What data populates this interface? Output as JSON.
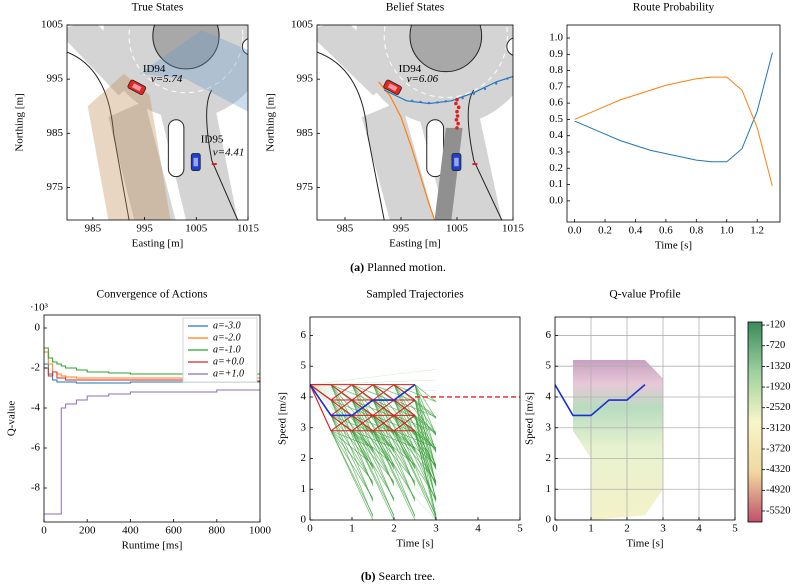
{
  "chart_data": [
    {
      "type": "scene",
      "title": "True States",
      "xlabel": "Easting [m]",
      "ylabel": "Northing [m]",
      "xlim": [
        980,
        1015
      ],
      "ylim": [
        969,
        1005
      ],
      "xticks": [
        985,
        995,
        1005,
        1015
      ],
      "yticks": [
        975,
        985,
        995,
        1005
      ],
      "vehicles": [
        {
          "id": "ID94",
          "speed_label": "v=5.74",
          "x": 993.5,
          "y": 993.5,
          "color": "#e8251f"
        },
        {
          "id": "ID95",
          "speed_label": "v=4.41",
          "x": 1004.9,
          "y": 979.7,
          "color": "#1f3fcf"
        }
      ]
    },
    {
      "type": "scene",
      "title": "Belief States",
      "xlabel": "Easting [m]",
      "ylabel": "Northing [m]",
      "xlim": [
        980,
        1015
      ],
      "ylim": [
        969,
        1005
      ],
      "xticks": [
        985,
        995,
        1005,
        1015
      ],
      "yticks": [
        975,
        985,
        995,
        1005
      ],
      "vehicles": [
        {
          "id": "ID94",
          "speed_label": "v=6.06",
          "x": 993.5,
          "y": 993.5,
          "color": "#e8251f"
        },
        {
          "x": 1004.9,
          "y": 979.7,
          "color": "#1f3fcf"
        }
      ],
      "routes": [
        {
          "color": "#ff7f0e",
          "x": [
            991,
            993,
            995,
            997,
            998.5,
            1000,
            1001
          ],
          "y": [
            994.5,
            992,
            988,
            982,
            977,
            972,
            969
          ]
        },
        {
          "color": "#1f77b4",
          "x": [
            992,
            996,
            1000,
            1004,
            1008,
            1012,
            1015
          ],
          "y": [
            993,
            991,
            990.5,
            991,
            992.5,
            994.5,
            995.5
          ]
        }
      ],
      "particles": [
        {
          "color": "#e02020",
          "x": [
            1005,
            1005.2,
            1004.9,
            1005.1,
            1005,
            1005.3,
            1004.8,
            1005
          ],
          "y": [
            986,
            986.8,
            987.5,
            988.2,
            989,
            989.8,
            990.5,
            991.2
          ]
        },
        {
          "color": "#4a6fd0",
          "x": [
            997,
            998.5,
            1000,
            1001.5,
            1003,
            1006,
            1008,
            1010,
            1012,
            1014
          ],
          "y": [
            991,
            990.8,
            990.6,
            990.7,
            990.9,
            991.5,
            992.3,
            993.2,
            994.2,
            995.1
          ]
        }
      ]
    },
    {
      "type": "line",
      "title": "Route Probability",
      "xlabel": "Time [s]",
      "xlim": [
        -0.05,
        1.35
      ],
      "ylim": [
        -0.13,
        1.08
      ],
      "xticks": [
        {
          "value": 0,
          "label": "0.0"
        },
        0.2,
        0.4,
        0.6,
        0.8,
        {
          "value": 1,
          "label": "1.0"
        },
        1.2
      ],
      "yticks": [
        {
          "value": 0,
          "label": "0.0"
        },
        0.1,
        0.2,
        0.3,
        0.4,
        0.5,
        0.6,
        0.7,
        0.8,
        0.9,
        {
          "value": 1,
          "label": "1.0"
        }
      ],
      "x": [
        0,
        0.1,
        0.2,
        0.3,
        0.4,
        0.5,
        0.6,
        0.7,
        0.8,
        0.9,
        1.0,
        1.1,
        1.2,
        1.3
      ],
      "series": [
        {
          "color": "#1f77b4",
          "values": [
            0.49,
            0.45,
            0.41,
            0.37,
            0.34,
            0.31,
            0.29,
            0.27,
            0.25,
            0.24,
            0.24,
            0.32,
            0.55,
            0.91
          ]
        },
        {
          "color": "#ff7f0e",
          "values": [
            0.5,
            0.54,
            0.58,
            0.62,
            0.65,
            0.68,
            0.71,
            0.73,
            0.75,
            0.76,
            0.76,
            0.68,
            0.45,
            0.09
          ]
        }
      ]
    },
    {
      "type": "line",
      "title": "Convergence of Actions",
      "xlabel": "Runtime [ms]",
      "ylabel": "Q-value",
      "y_multiplier": "·10³",
      "xlim": [
        0,
        1000
      ],
      "ylim": [
        -9.7,
        0.65
      ],
      "xticks": [
        0,
        200,
        400,
        600,
        800,
        1000
      ],
      "yticks": [
        0,
        -2,
        -4,
        -6,
        -8
      ],
      "step": true,
      "legend": "upper right",
      "x": [
        0,
        20,
        40,
        60,
        80,
        100,
        150,
        200,
        300,
        400,
        500,
        600,
        700,
        800,
        900,
        1000
      ],
      "series": [
        {
          "name": "a=-3.0",
          "color": "#1f77b4",
          "values": [
            -1.8,
            -2.3,
            -2.6,
            -2.7,
            -2.7,
            -2.7,
            -2.75,
            -2.75,
            -2.75,
            -2.7,
            -2.7,
            -2.7,
            -2.7,
            -2.7,
            -2.7,
            -2.7
          ]
        },
        {
          "name": "a=-2.0",
          "color": "#ff7f0e",
          "values": [
            -1.2,
            -1.8,
            -2.2,
            -2.3,
            -2.4,
            -2.45,
            -2.5,
            -2.5,
            -2.5,
            -2.5,
            -2.5,
            -2.5,
            -2.5,
            -2.5,
            -2.5,
            -2.5
          ]
        },
        {
          "name": "a=-1.0",
          "color": "#2ca02c",
          "values": [
            -1.0,
            -1.5,
            -1.7,
            -1.8,
            -1.9,
            -2.0,
            -2.1,
            -2.2,
            -2.25,
            -2.3,
            -2.3,
            -2.3,
            -2.3,
            -2.3,
            -2.3,
            -2.3
          ]
        },
        {
          "name": "a=+0.0",
          "color": "#d62728",
          "values": [
            -2.0,
            -2.4,
            -2.2,
            -2.5,
            -2.5,
            -2.6,
            -2.6,
            -2.6,
            -2.6,
            -2.6,
            -2.6,
            -2.6,
            -2.6,
            -2.6,
            -2.65,
            -2.6
          ]
        },
        {
          "name": "a=+1.0",
          "color": "#9467bd",
          "values": [
            -9.3,
            -9.3,
            -9.3,
            -9.3,
            -4.0,
            -3.8,
            -3.6,
            -3.4,
            -3.3,
            -3.2,
            -3.2,
            -3.2,
            -3.2,
            -3.1,
            -3.1,
            -3.1
          ]
        }
      ]
    },
    {
      "type": "tree",
      "title": "Sampled Trajectories",
      "xlabel": "Time [s]",
      "ylabel": "Speed [m/s]",
      "xlim": [
        0,
        5
      ],
      "ylim": [
        0,
        6.6
      ],
      "xticks": [
        0,
        1,
        2,
        3,
        4,
        5
      ],
      "yticks": [
        0,
        1,
        2,
        3,
        4,
        5,
        6
      ],
      "best_path": {
        "color": "#1a2fd0",
        "x": [
          0,
          0.5,
          1,
          1.5,
          2,
          2.5
        ],
        "values": [
          4.4,
          3.4,
          3.4,
          3.9,
          3.9,
          4.4
        ]
      },
      "reference": {
        "color": "#e02020",
        "value": 4.0,
        "x": [
          2.5,
          5
        ]
      }
    },
    {
      "type": "heatmap",
      "title": "Q-value Profile",
      "xlabel": "Time [s]",
      "ylabel": "Speed [m/s]",
      "xlim": [
        0,
        5
      ],
      "ylim": [
        0,
        6.6
      ],
      "xticks": [
        0,
        1,
        2,
        3,
        4,
        5
      ],
      "yticks": [
        0,
        1,
        2,
        3,
        4,
        5,
        6
      ],
      "grid": true,
      "best_path": {
        "color": "#1a2fd0",
        "x": [
          0,
          0.5,
          1,
          1.5,
          2,
          2.5
        ],
        "values": [
          4.4,
          3.4,
          3.4,
          3.9,
          3.9,
          4.4
        ]
      },
      "colorbar": {
        "lim": [
          -5840,
          -30
        ],
        "colors": [
          "#c0506a",
          "#f0d8a0",
          "#f7f6c8",
          "#9fd0a0",
          "#3a8a5a"
        ],
        "ticks": [
          -120,
          -720,
          -1320,
          -1920,
          -2520,
          -3120,
          -3720,
          -4320,
          -4920,
          -5520
        ]
      }
    }
  ],
  "captions": [
    {
      "label": "(a)",
      "text": "Planned motion."
    },
    {
      "label": "(b)",
      "text": "Search tree."
    }
  ]
}
